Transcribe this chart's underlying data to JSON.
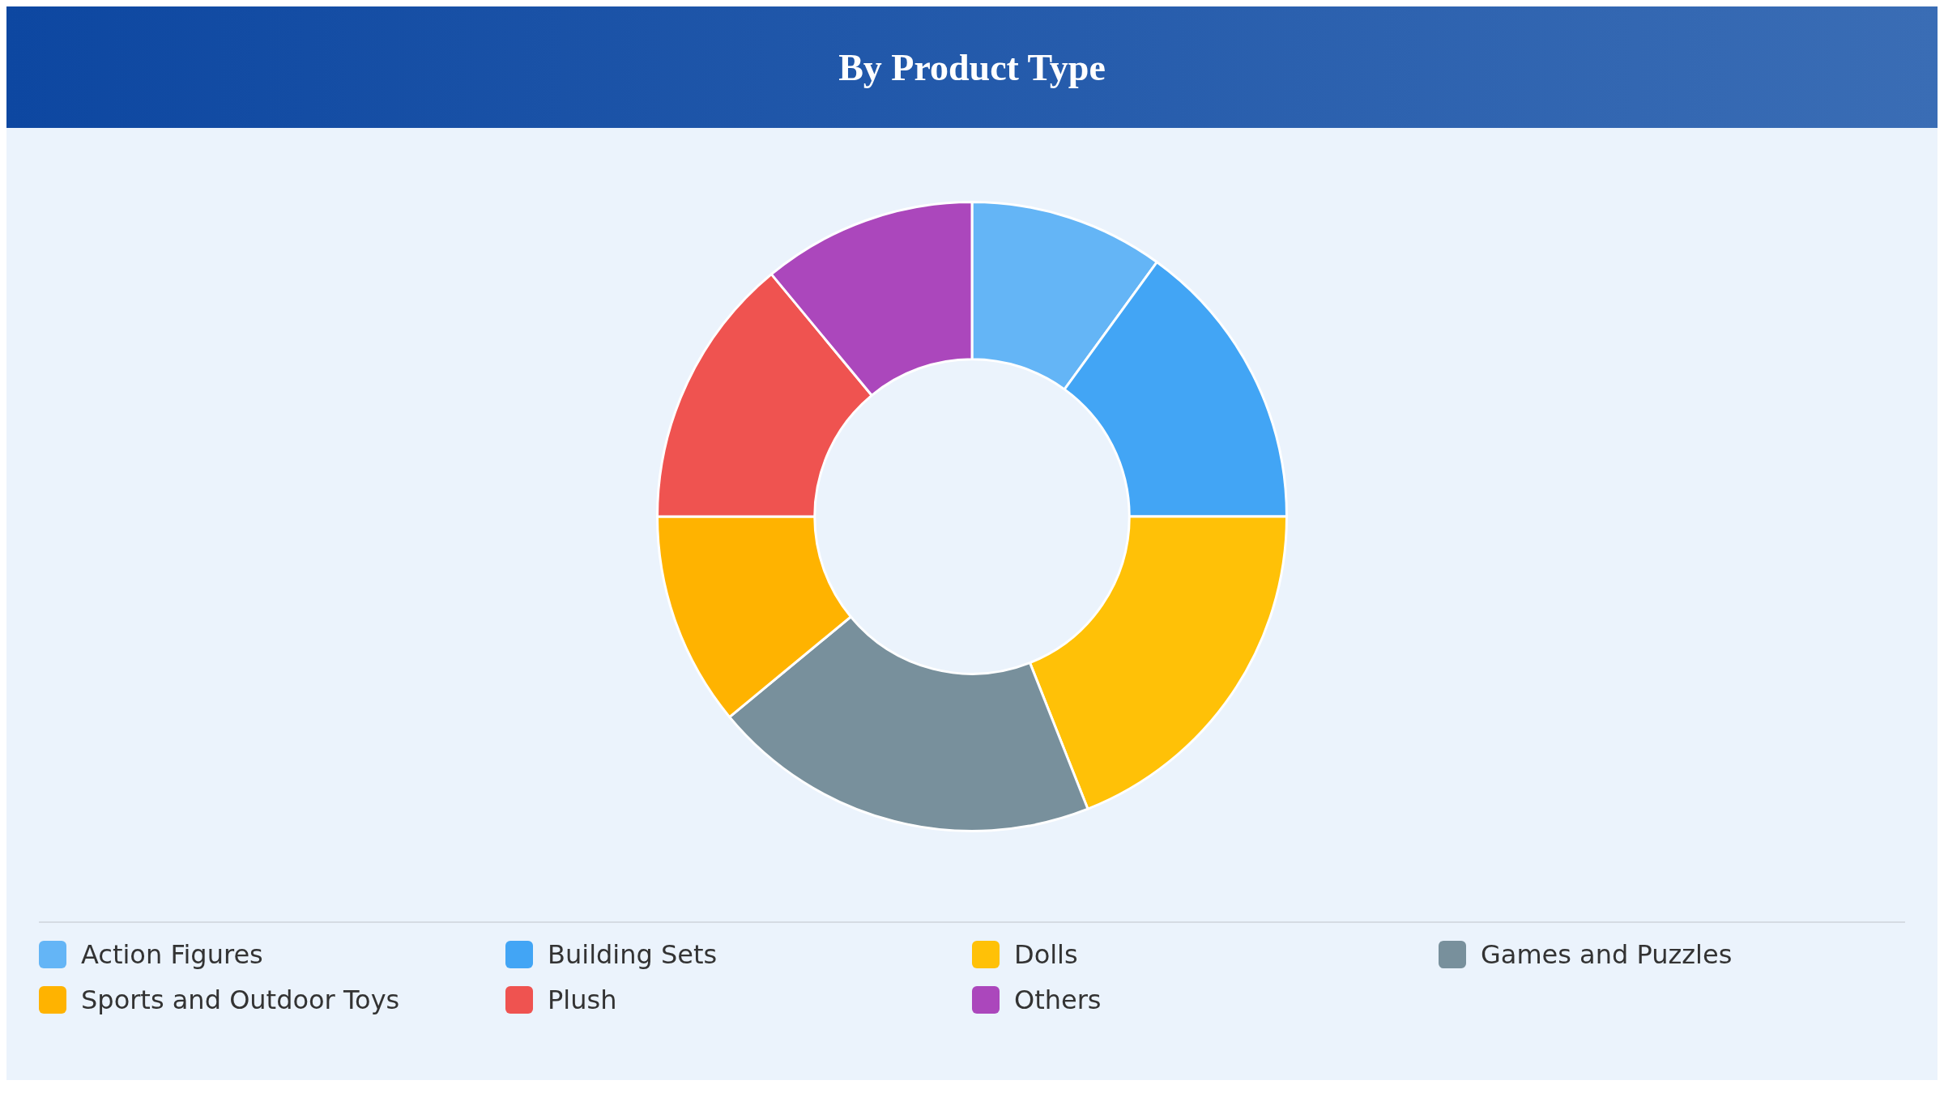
{
  "chart_data": {
    "type": "donut",
    "title": "By Product Type",
    "categories": [
      "Action Figures",
      "Building Sets",
      "Dolls",
      "Games and Puzzles",
      "Sports and Outdoor Toys",
      "Plush",
      "Others"
    ],
    "values": [
      10,
      15,
      19,
      20,
      11,
      14,
      11
    ],
    "colors": [
      "#64b5f6",
      "#42a5f5",
      "#ffc107",
      "#78909c",
      "#ffb300",
      "#ef5350",
      "#ab47bc"
    ],
    "legend": "bottom"
  }
}
